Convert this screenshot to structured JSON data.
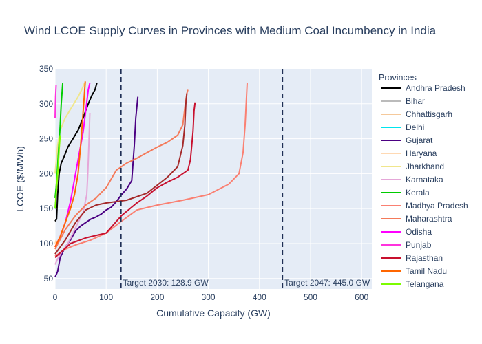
{
  "chart_data": {
    "type": "line",
    "title": "Wind LCOE Supply Curves in Provinces with Medium Coal Incumbency in India",
    "xlabel": "Cumulative Capacity (GW)",
    "ylabel": "LCOE ($/MWh)",
    "xlim": [
      0,
      620
    ],
    "ylim": [
      35,
      350
    ],
    "xticks": [
      0,
      100,
      200,
      300,
      400,
      500,
      600
    ],
    "yticks": [
      50,
      100,
      150,
      200,
      250,
      300,
      350
    ],
    "grid": true,
    "legend_title": "Provinces",
    "legend_position": "right",
    "targets": [
      {
        "x": 128.9,
        "label": "Target 2030: 128.9 GW",
        "color": "#1f2f55"
      },
      {
        "x": 445.0,
        "label": "Target 2047: 445.0 GW",
        "color": "#1f2f55"
      }
    ],
    "series": [
      {
        "name": "Andhra Pradesh",
        "color": "#000000",
        "points": [
          [
            0,
            132
          ],
          [
            3,
            135
          ],
          [
            5,
            170
          ],
          [
            8,
            200
          ],
          [
            12,
            215
          ],
          [
            18,
            225
          ],
          [
            25,
            238
          ],
          [
            35,
            250
          ],
          [
            45,
            262
          ],
          [
            55,
            280
          ],
          [
            65,
            300
          ],
          [
            72,
            312
          ],
          [
            78,
            320
          ],
          [
            82,
            330
          ]
        ]
      },
      {
        "name": "Bihar",
        "color": "#bbbbbb",
        "points": [
          [
            0,
            150
          ],
          [
            2,
            150
          ],
          [
            3,
            150
          ]
        ]
      },
      {
        "name": "Chhattisgarh",
        "color": "#f5c99b",
        "points": [
          [
            0,
            80
          ],
          [
            2,
            82
          ],
          [
            3,
            85
          ]
        ]
      },
      {
        "name": "Delhi",
        "color": "#00e5ee",
        "points": [
          [
            0,
            150
          ],
          [
            0.5,
            155
          ],
          [
            1,
            160
          ]
        ]
      },
      {
        "name": "Gujarat",
        "color": "#4b0082",
        "points": [
          [
            0,
            52
          ],
          [
            5,
            60
          ],
          [
            10,
            80
          ],
          [
            20,
            95
          ],
          [
            30,
            105
          ],
          [
            40,
            118
          ],
          [
            50,
            125
          ],
          [
            60,
            130
          ],
          [
            70,
            135
          ],
          [
            80,
            138
          ],
          [
            90,
            142
          ],
          [
            100,
            148
          ],
          [
            110,
            152
          ],
          [
            120,
            160
          ],
          [
            130,
            170
          ],
          [
            140,
            178
          ],
          [
            150,
            190
          ],
          [
            155,
            240
          ],
          [
            158,
            280
          ],
          [
            162,
            310
          ]
        ]
      },
      {
        "name": "Haryana",
        "color": "#ffd9b3",
        "points": [
          [
            0,
            100
          ],
          [
            1,
            102
          ],
          [
            2,
            105
          ]
        ]
      },
      {
        "name": "Jharkhand",
        "color": "#f0e68c",
        "points": [
          [
            0,
            200
          ],
          [
            5,
            240
          ],
          [
            10,
            262
          ],
          [
            20,
            280
          ],
          [
            35,
            298
          ],
          [
            45,
            310
          ],
          [
            52,
            320
          ],
          [
            58,
            330
          ]
        ]
      },
      {
        "name": "Karnataka",
        "color": "#e5a7d8",
        "points": [
          [
            0,
            70
          ],
          [
            5,
            78
          ],
          [
            15,
            90
          ],
          [
            25,
            100
          ],
          [
            35,
            115
          ],
          [
            45,
            130
          ],
          [
            55,
            145
          ],
          [
            62,
            170
          ],
          [
            64,
            200
          ],
          [
            66,
            240
          ],
          [
            68,
            287
          ]
        ]
      },
      {
        "name": "Kerala",
        "color": "#00cc00",
        "points": [
          [
            0,
            165
          ],
          [
            2,
            180
          ],
          [
            4,
            200
          ],
          [
            6,
            225
          ],
          [
            8,
            245
          ],
          [
            10,
            270
          ],
          [
            12,
            300
          ],
          [
            15,
            330
          ]
        ]
      },
      {
        "name": "Madhya Pradesh",
        "color": "#fa8072",
        "points": [
          [
            0,
            82
          ],
          [
            20,
            92
          ],
          [
            40,
            98
          ],
          [
            70,
            105
          ],
          [
            100,
            115
          ],
          [
            130,
            132
          ],
          [
            160,
            148
          ],
          [
            200,
            155
          ],
          [
            250,
            162
          ],
          [
            300,
            170
          ],
          [
            340,
            185
          ],
          [
            360,
            200
          ],
          [
            368,
            230
          ],
          [
            372,
            270
          ],
          [
            374,
            300
          ],
          [
            376,
            330
          ]
        ]
      },
      {
        "name": "Maharashtra",
        "color": "#f47a5a",
        "points": [
          [
            0,
            92
          ],
          [
            20,
            120
          ],
          [
            40,
            140
          ],
          [
            60,
            155
          ],
          [
            80,
            165
          ],
          [
            100,
            180
          ],
          [
            120,
            205
          ],
          [
            140,
            215
          ],
          [
            160,
            222
          ],
          [
            180,
            230
          ],
          [
            200,
            238
          ],
          [
            220,
            245
          ],
          [
            240,
            255
          ],
          [
            250,
            270
          ],
          [
            255,
            300
          ],
          [
            258,
            315
          ],
          [
            260,
            320
          ]
        ]
      },
      {
        "name": "Odisha",
        "color": "#ff00ff",
        "points": [
          [
            0,
            95
          ],
          [
            10,
            110
          ],
          [
            20,
            130
          ],
          [
            30,
            160
          ],
          [
            40,
            200
          ],
          [
            50,
            240
          ],
          [
            55,
            260
          ],
          [
            60,
            290
          ],
          [
            65,
            320
          ],
          [
            68,
            330
          ]
        ]
      },
      {
        "name": "Punjab",
        "color": "#ff33dd",
        "points": [
          [
            0,
            280
          ],
          [
            1,
            310
          ],
          [
            2,
            327
          ]
        ]
      },
      {
        "name": "Rajasthan",
        "color": "#c8102e",
        "points": [
          [
            0,
            80
          ],
          [
            30,
            100
          ],
          [
            60,
            108
          ],
          [
            100,
            115
          ],
          [
            130,
            140
          ],
          [
            160,
            158
          ],
          [
            180,
            168
          ],
          [
            200,
            180
          ],
          [
            220,
            188
          ],
          [
            240,
            195
          ],
          [
            260,
            205
          ],
          [
            265,
            220
          ],
          [
            270,
            260
          ],
          [
            272,
            290
          ],
          [
            274,
            302
          ]
        ]
      },
      {
        "name": "Tamil Nadu",
        "color": "#ff6600",
        "points": [
          [
            0,
            95
          ],
          [
            10,
            110
          ],
          [
            20,
            130
          ],
          [
            30,
            150
          ],
          [
            38,
            170
          ],
          [
            45,
            200
          ],
          [
            50,
            240
          ],
          [
            54,
            280
          ],
          [
            57,
            310
          ],
          [
            59,
            332
          ]
        ]
      },
      {
        "name": "Telangana",
        "color": "#7cfc00",
        "points": [
          [
            0,
            150
          ],
          [
            2,
            170
          ],
          [
            4,
            190
          ],
          [
            6,
            210
          ],
          [
            8,
            235
          ],
          [
            10,
            255
          ]
        ]
      },
      {
        "name": "",
        "color": "#a52a2a",
        "points": [
          [
            0,
            85
          ],
          [
            20,
            105
          ],
          [
            40,
            130
          ],
          [
            60,
            148
          ],
          [
            80,
            155
          ],
          [
            100,
            158
          ],
          [
            140,
            162
          ],
          [
            180,
            172
          ],
          [
            220,
            195
          ],
          [
            240,
            210
          ],
          [
            250,
            240
          ],
          [
            254,
            270
          ],
          [
            256,
            300
          ],
          [
            258,
            315
          ]
        ]
      }
    ]
  }
}
